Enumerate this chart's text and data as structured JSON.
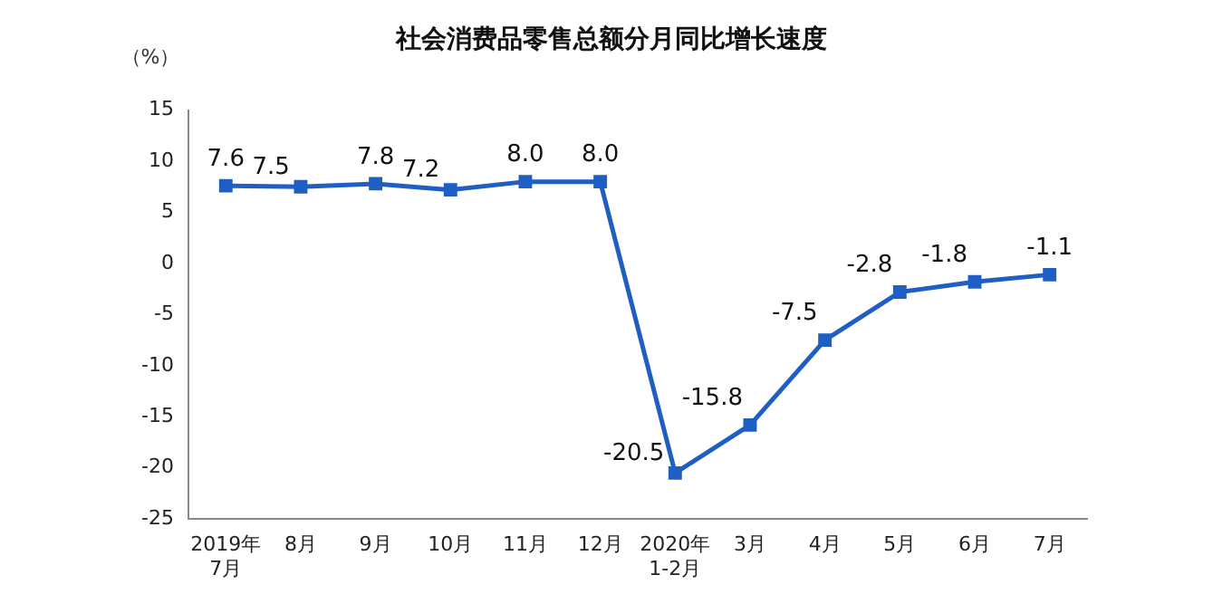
{
  "chart_data": {
    "type": "line",
    "title": "社会消费品零售总额分月同比增长速度",
    "ylabel": "（%）",
    "categories": [
      "2019年\n7月",
      "8月",
      "9月",
      "10月",
      "11月",
      "12月",
      "2020年\n1-2月",
      "3月",
      "4月",
      "5月",
      "6月",
      "7月"
    ],
    "series": [
      {
        "color": "#1f5fc4",
        "values": [
          7.6,
          7.5,
          7.8,
          7.2,
          8.0,
          8.0,
          -20.5,
          -15.8,
          -7.5,
          -2.8,
          -1.8,
          -1.1
        ],
        "value_labels": [
          "7.6",
          "7.5",
          "7.8",
          "7.2",
          "8.0",
          "8.0",
          "-20.5",
          "-15.8",
          "-7.5",
          "-2.8",
          "-1.8",
          "-1.1"
        ]
      }
    ],
    "ylim": [
      -25,
      15
    ],
    "yticks": [
      -25,
      -20,
      -15,
      -10,
      -5,
      0,
      5,
      10,
      15
    ],
    "grid": false,
    "legend": false,
    "marker": "square",
    "line_style": "solid"
  }
}
